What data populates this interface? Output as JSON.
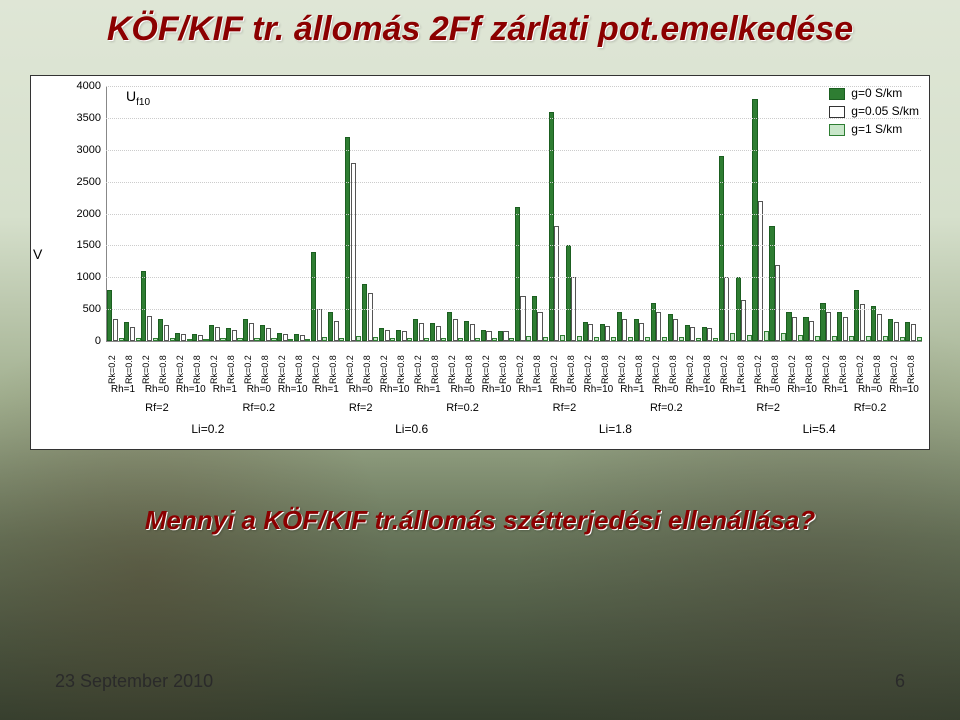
{
  "title": "KÖF/KIF tr. állomás 2Ff zárlati pot.emelkedése",
  "subtitle": "Mennyi a KÖF/KIF tr.állomás szétterjedési ellenállása?",
  "footer_date": "23 September 2010",
  "footer_page": "6",
  "chart": {
    "type": "grouped-bar",
    "y_label": "V",
    "u_label": "U",
    "u_sub": "f10",
    "ymax": 4000,
    "ytick_step": 500,
    "yticks": [
      0,
      500,
      1000,
      1500,
      2000,
      2500,
      3000,
      3500,
      4000
    ],
    "legend": [
      {
        "label": "g=0 S/km",
        "fill": "#2e7d32",
        "border": "#1b5e20"
      },
      {
        "label": "g=0.05 S/km",
        "fill": "#ffffff",
        "border": "#333333"
      },
      {
        "label": "g=1 S/km",
        "fill": "#c8e6c9",
        "border": "#2e7d32"
      }
    ],
    "series_colors": {
      "g0": {
        "fill": "#2e7d32",
        "border": "#1b5e20"
      },
      "g005": {
        "fill": "#ffffff",
        "border": "#555555"
      },
      "g1": {
        "fill": "#c8e6c9",
        "border": "#2e7d32"
      }
    },
    "li_groups": [
      {
        "li_label": "Li=0.2",
        "rf_groups": [
          {
            "rf_label": "Rf=2",
            "rh_groups": [
              {
                "rh_label": "Rh=1",
                "bars": [
                  {
                    "rk": "Rk=0.2",
                    "g0": 800,
                    "g005": 350,
                    "g1": 40
                  },
                  {
                    "rk": "Rk=0.8",
                    "g0": 300,
                    "g005": 220,
                    "g1": 40
                  }
                ]
              },
              {
                "rh_label": "Rh=0",
                "bars": [
                  {
                    "rk": "Rk=0.2",
                    "g0": 1100,
                    "g005": 400,
                    "g1": 40
                  },
                  {
                    "rk": "Rk=0.8",
                    "g0": 350,
                    "g005": 250,
                    "g1": 40
                  }
                ]
              },
              {
                "rh_label": "Rh=10",
                "bars": [
                  {
                    "rk": "Rk=0.2",
                    "g0": 120,
                    "g005": 110,
                    "g1": 30
                  },
                  {
                    "rk": "Rk=0.8",
                    "g0": 110,
                    "g005": 100,
                    "g1": 30
                  }
                ]
              }
            ]
          },
          {
            "rf_label": "Rf=0.2",
            "rh_groups": [
              {
                "rh_label": "Rh=1",
                "bars": [
                  {
                    "rk": "Rk=0.2",
                    "g0": 250,
                    "g005": 220,
                    "g1": 40
                  },
                  {
                    "rk": "Rk=0.8",
                    "g0": 200,
                    "g005": 180,
                    "g1": 40
                  }
                ]
              },
              {
                "rh_label": "Rh=0",
                "bars": [
                  {
                    "rk": "Rk=0.2",
                    "g0": 350,
                    "g005": 280,
                    "g1": 40
                  },
                  {
                    "rk": "Rk=0.8",
                    "g0": 250,
                    "g005": 210,
                    "g1": 40
                  }
                ]
              },
              {
                "rh_label": "Rh=10",
                "bars": [
                  {
                    "rk": "Rk=0.2",
                    "g0": 120,
                    "g005": 110,
                    "g1": 30
                  },
                  {
                    "rk": "Rk=0.8",
                    "g0": 110,
                    "g005": 100,
                    "g1": 30
                  }
                ]
              }
            ]
          }
        ]
      },
      {
        "li_label": "Li=0.6",
        "rf_groups": [
          {
            "rf_label": "Rf=2",
            "rh_groups": [
              {
                "rh_label": "Rh=1",
                "bars": [
                  {
                    "rk": "Rk=0.2",
                    "g0": 1400,
                    "g005": 500,
                    "g1": 60
                  },
                  {
                    "rk": "Rk=0.8",
                    "g0": 450,
                    "g005": 320,
                    "g1": 50
                  }
                ]
              },
              {
                "rh_label": "Rh=0",
                "bars": [
                  {
                    "rk": "Rk=0.2",
                    "g0": 3200,
                    "g005": 2800,
                    "g1": 80
                  },
                  {
                    "rk": "Rk=0.8",
                    "g0": 900,
                    "g005": 750,
                    "g1": 60
                  }
                ]
              },
              {
                "rh_label": "Rh=10",
                "bars": [
                  {
                    "rk": "Rk=0.2",
                    "g0": 200,
                    "g005": 180,
                    "g1": 50
                  },
                  {
                    "rk": "Rk=0.8",
                    "g0": 180,
                    "g005": 160,
                    "g1": 50
                  }
                ]
              }
            ]
          },
          {
            "rf_label": "Rf=0.2",
            "rh_groups": [
              {
                "rh_label": "Rh=1",
                "bars": [
                  {
                    "rk": "Rk=0.2",
                    "g0": 350,
                    "g005": 280,
                    "g1": 50
                  },
                  {
                    "rk": "Rk=0.8",
                    "g0": 280,
                    "g005": 230,
                    "g1": 50
                  }
                ]
              },
              {
                "rh_label": "Rh=0",
                "bars": [
                  {
                    "rk": "Rk=0.2",
                    "g0": 450,
                    "g005": 350,
                    "g1": 50
                  },
                  {
                    "rk": "Rk=0.8",
                    "g0": 320,
                    "g005": 270,
                    "g1": 50
                  }
                ]
              },
              {
                "rh_label": "Rh=10",
                "bars": [
                  {
                    "rk": "Rk=0.2",
                    "g0": 180,
                    "g005": 160,
                    "g1": 40
                  },
                  {
                    "rk": "Rk=0.8",
                    "g0": 160,
                    "g005": 150,
                    "g1": 40
                  }
                ]
              }
            ]
          }
        ]
      },
      {
        "li_label": "Li=1.8",
        "rf_groups": [
          {
            "rf_label": "Rf=2",
            "rh_groups": [
              {
                "rh_label": "Rh=1",
                "bars": [
                  {
                    "rk": "Rk=0.2",
                    "g0": 2100,
                    "g005": 700,
                    "g1": 80
                  },
                  {
                    "rk": "Rk=0.8",
                    "g0": 700,
                    "g005": 450,
                    "g1": 70
                  }
                ]
              },
              {
                "rh_label": "Rh=0",
                "bars": [
                  {
                    "rk": "Rk=0.2",
                    "g0": 3600,
                    "g005": 1800,
                    "g1": 100
                  },
                  {
                    "rk": "Rk=0.8",
                    "g0": 1500,
                    "g005": 1000,
                    "g1": 80
                  }
                ]
              },
              {
                "rh_label": "Rh=10",
                "bars": [
                  {
                    "rk": "Rk=0.2",
                    "g0": 300,
                    "g005": 260,
                    "g1": 70
                  },
                  {
                    "rk": "Rk=0.8",
                    "g0": 260,
                    "g005": 230,
                    "g1": 60
                  }
                ]
              }
            ]
          },
          {
            "rf_label": "Rf=0.2",
            "rh_groups": [
              {
                "rh_label": "Rh=1",
                "bars": [
                  {
                    "rk": "Rk=0.2",
                    "g0": 450,
                    "g005": 350,
                    "g1": 60
                  },
                  {
                    "rk": "Rk=0.8",
                    "g0": 350,
                    "g005": 290,
                    "g1": 60
                  }
                ]
              },
              {
                "rh_label": "Rh=0",
                "bars": [
                  {
                    "rk": "Rk=0.2",
                    "g0": 600,
                    "g005": 450,
                    "g1": 60
                  },
                  {
                    "rk": "Rk=0.8",
                    "g0": 420,
                    "g005": 340,
                    "g1": 60
                  }
                ]
              },
              {
                "rh_label": "Rh=10",
                "bars": [
                  {
                    "rk": "Rk=0.2",
                    "g0": 250,
                    "g005": 220,
                    "g1": 50
                  },
                  {
                    "rk": "Rk=0.8",
                    "g0": 220,
                    "g005": 200,
                    "g1": 50
                  }
                ]
              }
            ]
          }
        ]
      },
      {
        "li_label": "Li=5.4",
        "rf_groups": [
          {
            "rf_label": "Rf=2",
            "rh_groups": [
              {
                "rh_label": "Rh=1",
                "bars": [
                  {
                    "rk": "Rk=0.2",
                    "g0": 2900,
                    "g005": 1000,
                    "g1": 120
                  },
                  {
                    "rk": "Rk=0.8",
                    "g0": 1000,
                    "g005": 650,
                    "g1": 100
                  }
                ]
              },
              {
                "rh_label": "Rh=0",
                "bars": [
                  {
                    "rk": "Rk=0.2",
                    "g0": 3800,
                    "g005": 2200,
                    "g1": 150
                  },
                  {
                    "rk": "Rk=0.8",
                    "g0": 1800,
                    "g005": 1200,
                    "g1": 120
                  }
                ]
              },
              {
                "rh_label": "Rh=10",
                "bars": [
                  {
                    "rk": "Rk=0.2",
                    "g0": 450,
                    "g005": 380,
                    "g1": 90
                  },
                  {
                    "rk": "Rk=0.8",
                    "g0": 380,
                    "g005": 320,
                    "g1": 80
                  }
                ]
              }
            ]
          },
          {
            "rf_label": "Rf=0.2",
            "rh_groups": [
              {
                "rh_label": "Rh=1",
                "bars": [
                  {
                    "rk": "Rk=0.2",
                    "g0": 600,
                    "g005": 450,
                    "g1": 80
                  },
                  {
                    "rk": "Rk=0.8",
                    "g0": 450,
                    "g005": 370,
                    "g1": 80
                  }
                ]
              },
              {
                "rh_label": "Rh=0",
                "bars": [
                  {
                    "rk": "Rk=0.2",
                    "g0": 800,
                    "g005": 580,
                    "g1": 80
                  },
                  {
                    "rk": "Rk=0.8",
                    "g0": 550,
                    "g005": 430,
                    "g1": 80
                  }
                ]
              },
              {
                "rh_label": "Rh=10",
                "bars": [
                  {
                    "rk": "Rk=0.2",
                    "g0": 350,
                    "g005": 300,
                    "g1": 70
                  },
                  {
                    "rk": "Rk=0.8",
                    "g0": 300,
                    "g005": 260,
                    "g1": 70
                  }
                ]
              }
            ]
          }
        ]
      }
    ]
  }
}
